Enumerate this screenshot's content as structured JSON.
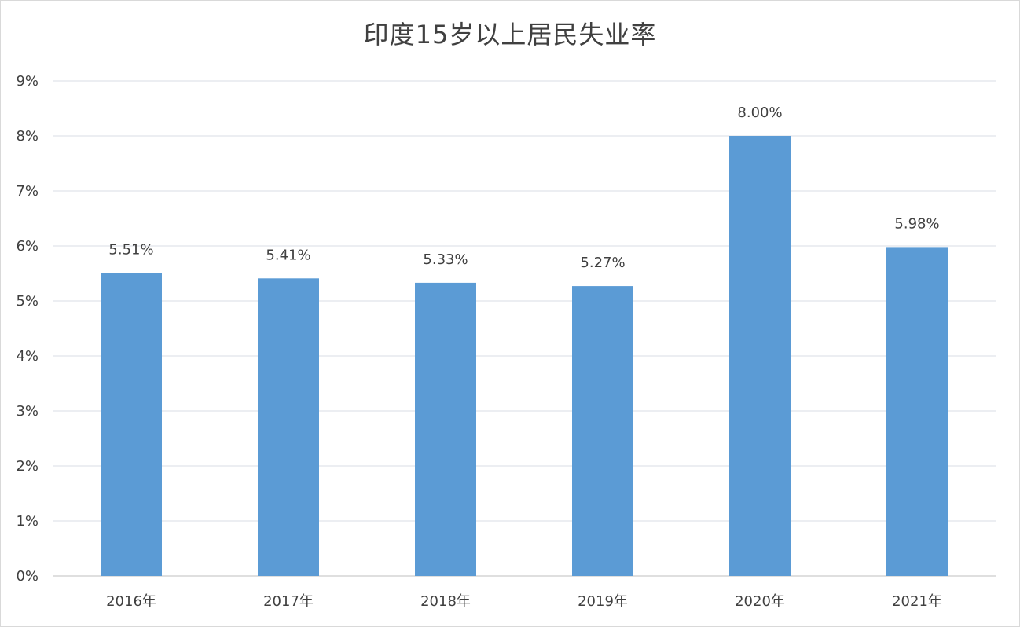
{
  "chart_data": {
    "type": "bar",
    "title": "印度15岁以上居民失业率",
    "categories": [
      "2016年",
      "2017年",
      "2018年",
      "2019年",
      "2020年",
      "2021年"
    ],
    "values": [
      5.51,
      5.41,
      5.33,
      5.27,
      8.0,
      5.98
    ],
    "data_labels": [
      "5.51%",
      "5.41%",
      "5.33%",
      "5.27%",
      "8.00%",
      "5.98%"
    ],
    "y_ticks": [
      "0%",
      "1%",
      "2%",
      "3%",
      "4%",
      "5%",
      "6%",
      "7%",
      "8%",
      "9%"
    ],
    "ylim": [
      0,
      9
    ],
    "grid": true,
    "legend": "none",
    "xlabel": "",
    "ylabel": "",
    "colors": {
      "bar": "#5b9bd5",
      "gridline": "#d9dde6",
      "text": "#404040"
    }
  }
}
